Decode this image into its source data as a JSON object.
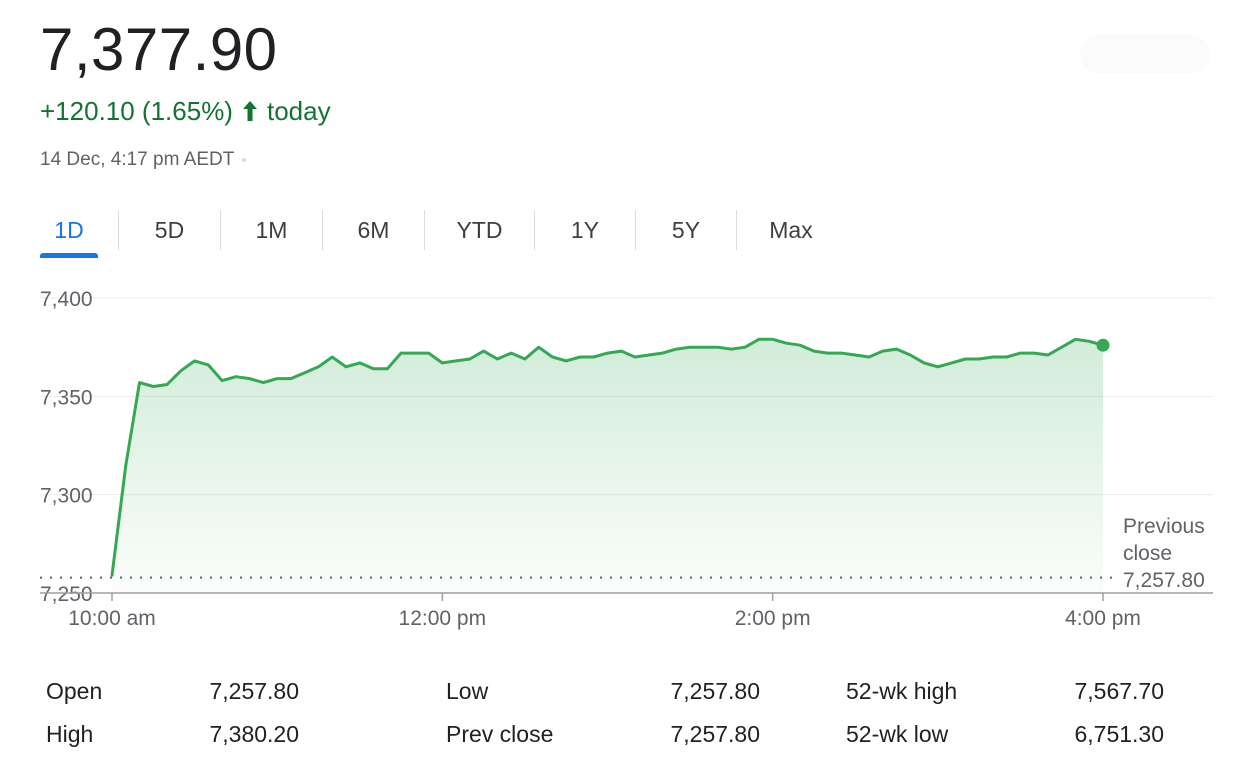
{
  "quote": {
    "price": "7,377.90",
    "change": "+120.10 (1.65%)",
    "change_suffix": "today",
    "timestamp": "14 Dec, 4:17 pm AEDT"
  },
  "colors": {
    "up": "#137333",
    "line": "#34a853",
    "accent": "#1a73e8"
  },
  "range_tabs": [
    {
      "label": "1D",
      "active": true
    },
    {
      "label": "5D"
    },
    {
      "label": "1M"
    },
    {
      "label": "6M"
    },
    {
      "label": "YTD"
    },
    {
      "label": "1Y"
    },
    {
      "label": "5Y"
    },
    {
      "label": "Max"
    }
  ],
  "chart_data": {
    "type": "area",
    "x_range": [
      "10:00",
      "16:00"
    ],
    "ylim": [
      7250,
      7400
    ],
    "y_ticks": [
      "7,400",
      "7,350",
      "7,300",
      "7,250"
    ],
    "x_ticks": [
      "10:00 am",
      "12:00 pm",
      "2:00 pm",
      "4:00 pm"
    ],
    "grid": true,
    "reference_line": {
      "label_lines": [
        "Previous",
        "close"
      ],
      "value_label": "7,257.80",
      "value": 7257.8
    },
    "series": [
      {
        "x": [
          "10:00",
          "10:05",
          "10:10",
          "10:15",
          "10:20",
          "10:25",
          "10:30",
          "10:35",
          "10:40",
          "10:45",
          "10:50",
          "10:55",
          "11:00",
          "11:05",
          "11:10",
          "11:15",
          "11:20",
          "11:25",
          "11:30",
          "11:35",
          "11:40",
          "11:45",
          "11:50",
          "11:55",
          "12:00",
          "12:05",
          "12:10",
          "12:15",
          "12:20",
          "12:25",
          "12:30",
          "12:35",
          "12:40",
          "12:45",
          "12:50",
          "12:55",
          "13:00",
          "13:05",
          "13:10",
          "13:15",
          "13:20",
          "13:25",
          "13:30",
          "13:35",
          "13:40",
          "13:45",
          "13:50",
          "13:55",
          "14:00",
          "14:05",
          "14:10",
          "14:15",
          "14:20",
          "14:25",
          "14:30",
          "14:35",
          "14:40",
          "14:45",
          "14:50",
          "14:55",
          "15:00",
          "15:05",
          "15:10",
          "15:15",
          "15:20",
          "15:25",
          "15:30",
          "15:35",
          "15:40",
          "15:45",
          "15:50",
          "15:55",
          "16:00"
        ],
        "values": [
          7259,
          7315,
          7357,
          7355,
          7356,
          7363,
          7368,
          7366,
          7358,
          7360,
          7359,
          7357,
          7359,
          7359,
          7362,
          7365,
          7370,
          7365,
          7367,
          7364,
          7364,
          7372,
          7372,
          7372,
          7367,
          7368,
          7369,
          7373,
          7369,
          7372,
          7369,
          7375,
          7370,
          7368,
          7370,
          7370,
          7372,
          7373,
          7370,
          7371,
          7372,
          7374,
          7375,
          7375,
          7375,
          7374,
          7375,
          7379,
          7379,
          7377,
          7376,
          7373,
          7372,
          7372,
          7371,
          7370,
          7373,
          7374,
          7371,
          7367,
          7365,
          7367,
          7369,
          7369,
          7370,
          7370,
          7372,
          7372,
          7371,
          7375,
          7379,
          7378,
          7376
        ]
      }
    ]
  },
  "stats": [
    {
      "label": "Open",
      "value": "7,257.80"
    },
    {
      "label": "High",
      "value": "7,380.20"
    },
    {
      "label": "Low",
      "value": "7,257.80"
    },
    {
      "label": "Prev close",
      "value": "7,257.80"
    },
    {
      "label": "52-wk high",
      "value": "7,567.70"
    },
    {
      "label": "52-wk low",
      "value": "6,751.30"
    }
  ]
}
